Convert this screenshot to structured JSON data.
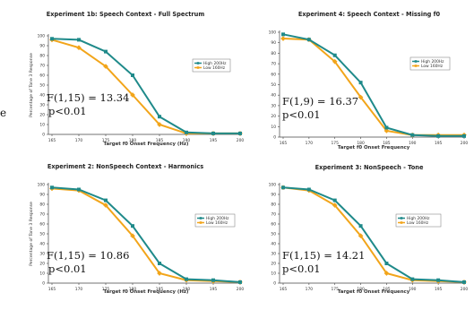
{
  "chart_data": [
    {
      "type": "line",
      "title": "Experiment 1b: Speech Context - Full Spectrum",
      "xlabel": "Target f0 Onset Frequency (Hz)",
      "ylabel": "Percentage of Tone 3 Response",
      "x": [
        165,
        170,
        175,
        180,
        185,
        190,
        195,
        200
      ],
      "ylim": [
        0,
        100
      ],
      "yticks": [
        0,
        10,
        20,
        30,
        40,
        50,
        60,
        70,
        80,
        90,
        100
      ],
      "legend": "right",
      "grid": false,
      "series": [
        {
          "name": "High 200Hz",
          "color": "#1f8a8a",
          "values": [
            97,
            96,
            84,
            60,
            18,
            2,
            1,
            1
          ]
        },
        {
          "name": "Low 160Hz",
          "color": "#f2a51a",
          "values": [
            96,
            88,
            69,
            40,
            10,
            1,
            1,
            1
          ]
        }
      ],
      "stat_line1": "F(1,15) = 13.34",
      "stat_line2": "p<0.01"
    },
    {
      "type": "line",
      "title": "Experiment 4: Speech Context - Missing f0",
      "xlabel": "Target f0 Onset Frequency",
      "ylabel": "",
      "x": [
        165,
        170,
        175,
        180,
        185,
        190,
        195,
        200
      ],
      "ylim": [
        0,
        100
      ],
      "yticks": [
        0,
        10,
        20,
        30,
        40,
        50,
        60,
        70,
        80,
        90,
        100
      ],
      "legend": "right",
      "grid": false,
      "series": [
        {
          "name": "High 200Hz",
          "color": "#1f8a8a",
          "values": [
            98,
            93,
            78,
            52,
            9,
            2,
            1,
            1
          ]
        },
        {
          "name": "Low 160Hz",
          "color": "#f2a51a",
          "values": [
            94,
            93,
            72,
            38,
            6,
            2,
            2,
            2
          ]
        }
      ],
      "stat_line1": "F(1,9) = 16.37",
      "stat_line2": "p<0.01"
    },
    {
      "type": "line",
      "title": "Experiment 2: NonSpeech Context - Harmonics",
      "xlabel": "Target f0 Onset Frequency (Hz)",
      "ylabel": "Percentage of Tone 3 Response",
      "x": [
        165,
        170,
        175,
        180,
        185,
        190,
        195,
        200
      ],
      "ylim": [
        0,
        100
      ],
      "yticks": [
        0,
        10,
        20,
        30,
        40,
        50,
        60,
        70,
        80,
        90,
        100
      ],
      "legend": "right",
      "grid": false,
      "series": [
        {
          "name": "High 200Hz",
          "color": "#1f8a8a",
          "values": [
            97,
            95,
            84,
            58,
            20,
            4,
            3,
            1
          ]
        },
        {
          "name": "Low 160Hz",
          "color": "#f2a51a",
          "values": [
            96,
            94,
            79,
            48,
            10,
            3,
            2,
            1
          ]
        }
      ],
      "stat_line1": "F(1,15) = 10.86",
      "stat_line2": "p<0.01"
    },
    {
      "type": "line",
      "title": "Experiment 3: NonSpeech - Tone",
      "xlabel": "Target f0 Onset Frequency",
      "ylabel": "",
      "x": [
        165,
        170,
        175,
        180,
        185,
        190,
        195,
        200
      ],
      "ylim": [
        0,
        100
      ],
      "yticks": [
        0,
        10,
        20,
        30,
        40,
        50,
        60,
        70,
        80,
        90,
        100
      ],
      "legend": "right",
      "grid": false,
      "series": [
        {
          "name": "High 200Hz",
          "color": "#1f8a8a",
          "values": [
            97,
            95,
            84,
            58,
            20,
            4,
            3,
            1
          ]
        },
        {
          "name": "Low 160Hz",
          "color": "#f2a51a",
          "values": [
            97,
            94,
            79,
            48,
            10,
            3,
            2,
            1
          ]
        }
      ],
      "stat_line1": "F(1,15) = 14.21",
      "stat_line2": "p<0.01"
    }
  ],
  "stray_text": "e"
}
